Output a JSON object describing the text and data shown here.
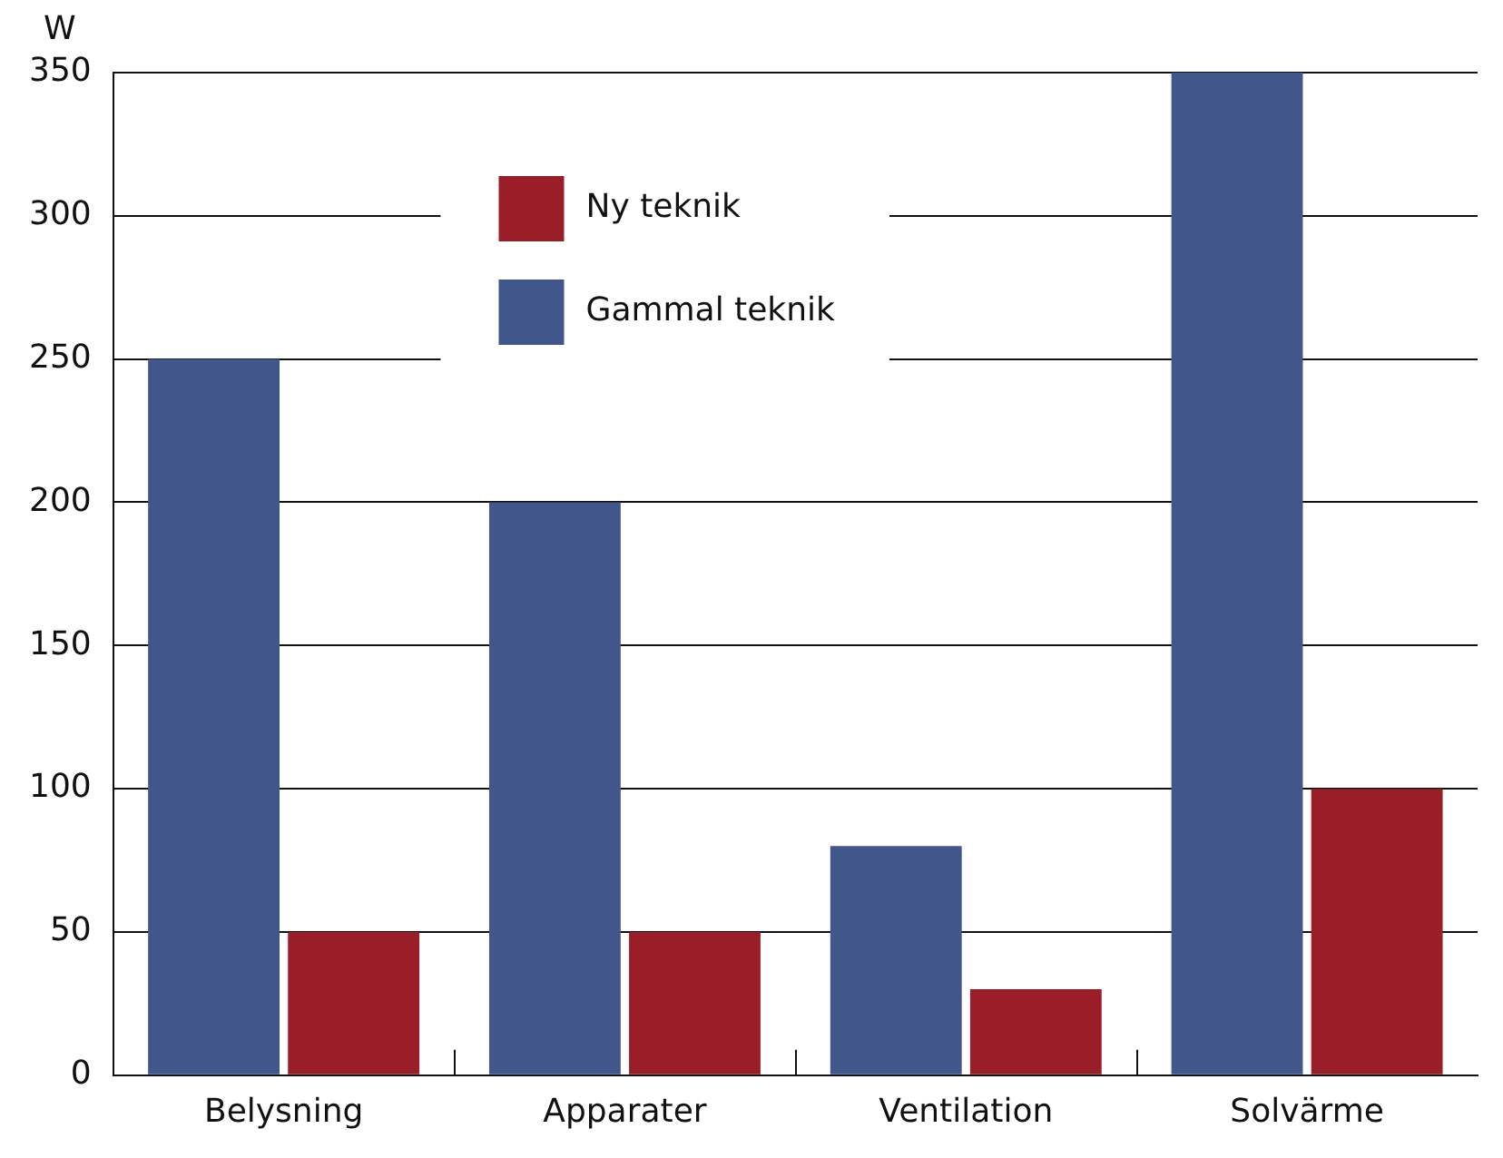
{
  "chart_data": {
    "type": "bar",
    "ylabel": "W",
    "categories": [
      "Belysning",
      "Apparater",
      "Ventilation",
      "Solvärme"
    ],
    "series": [
      {
        "name": "Gammal teknik",
        "color": "#41568a",
        "values": [
          250,
          200,
          80,
          350
        ]
      },
      {
        "name": "Ny teknik",
        "color": "#9a1e27",
        "values": [
          50,
          50,
          30,
          100
        ]
      }
    ],
    "ylim": [
      0,
      350
    ],
    "yticks": [
      0,
      50,
      100,
      150,
      200,
      250,
      300,
      350
    ],
    "grid": "y",
    "legend": "top"
  }
}
